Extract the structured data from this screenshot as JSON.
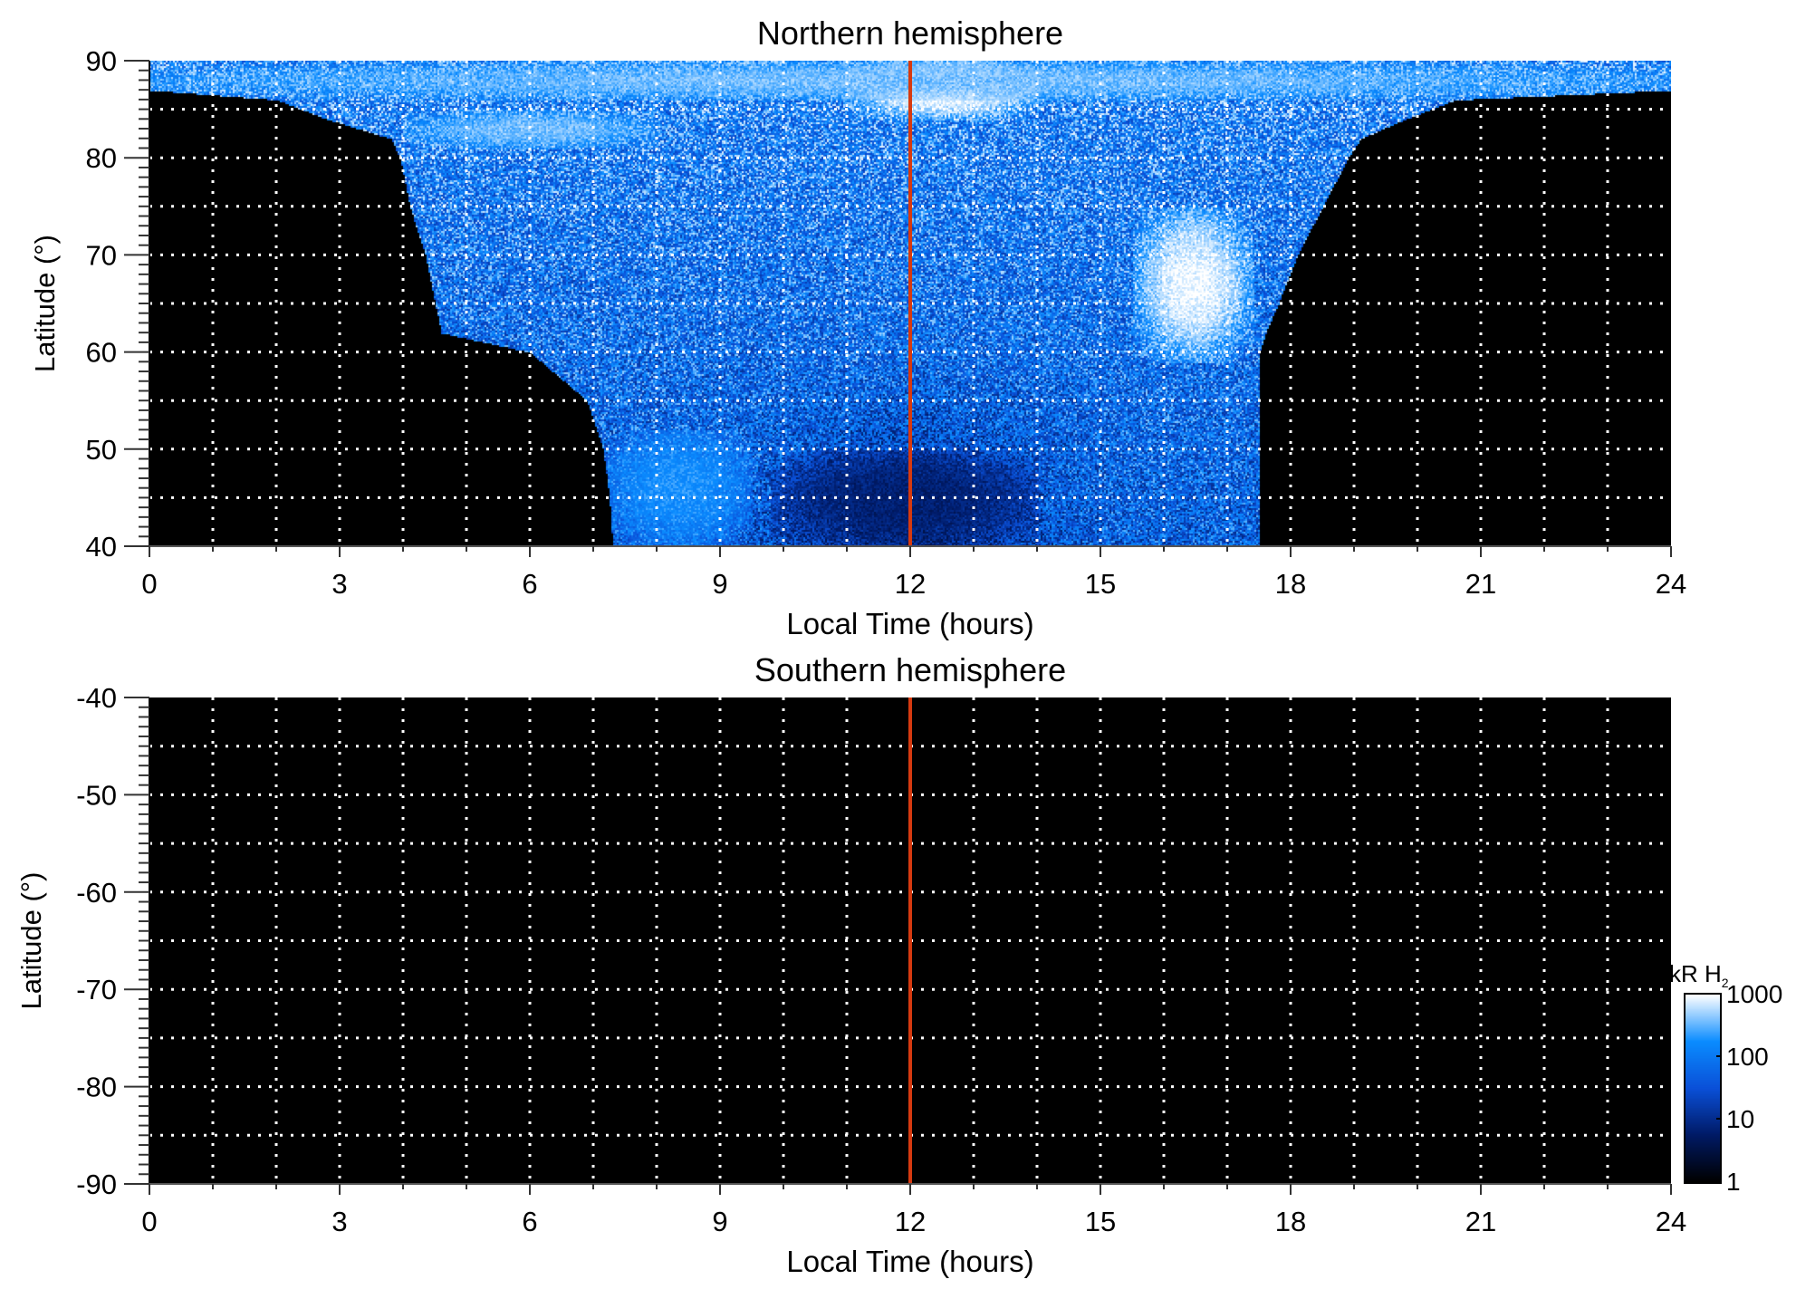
{
  "chart_data": [
    {
      "type": "heatmap",
      "title": "Northern hemisphere",
      "xlabel": "Local Time (hours)",
      "ylabel": "Latitude (°)",
      "xlim": [
        0,
        24
      ],
      "ylim": [
        40,
        90
      ],
      "xticks": [
        "0",
        "3",
        "6",
        "9",
        "12",
        "15",
        "18",
        "21",
        "24"
      ],
      "yticks": [
        "40",
        "50",
        "60",
        "70",
        "80",
        "90"
      ],
      "grid": true,
      "reference_line": {
        "x": 12,
        "color": "#d63a10"
      },
      "emission_boundaries": {
        "latitude": [
          40,
          45,
          50,
          55,
          60,
          62,
          65,
          70,
          75,
          80,
          82,
          84,
          86,
          87,
          90
        ],
        "dawn_lt": [
          7.3,
          7.25,
          7.15,
          6.9,
          6.0,
          4.6,
          4.5,
          4.35,
          4.1,
          3.95,
          3.8,
          2.8,
          2.0,
          0,
          0
        ],
        "dusk_lt": [
          17.5,
          17.5,
          17.5,
          17.5,
          17.5,
          17.6,
          17.8,
          18.1,
          18.5,
          18.9,
          19.1,
          19.8,
          20.6,
          24,
          24
        ]
      },
      "features": [
        {
          "name": "dusk bright arc",
          "lt_range": [
            15.5,
            17.4
          ],
          "lat_range": [
            59,
            75
          ],
          "log10_kR": 3.0
        },
        {
          "name": "noon polar cusp",
          "lt_range": [
            11,
            14
          ],
          "lat_range": [
            84,
            90
          ],
          "log10_kR": 3.0
        },
        {
          "name": "high-latitude band",
          "lt_range": [
            0,
            24
          ],
          "lat_range": [
            86,
            90
          ],
          "log10_kR": 2.6
        },
        {
          "name": "dawn arc",
          "lt_range": [
            4,
            8
          ],
          "lat_range": [
            81,
            85
          ],
          "log10_kR": 2.6
        },
        {
          "name": "dawn low-latitude",
          "lt_range": [
            7.2,
            9.5
          ],
          "lat_range": [
            40,
            52
          ],
          "log10_kR": 2.3
        },
        {
          "name": "noon low-latitude",
          "lt_range": [
            9.8,
            14
          ],
          "lat_range": [
            40,
            50
          ],
          "log10_kR": 0.8
        }
      ]
    },
    {
      "type": "heatmap",
      "title": "Southern hemisphere",
      "xlabel": "Local Time (hours)",
      "ylabel": "Latitude (°)",
      "xlim": [
        0,
        24
      ],
      "ylim": [
        -90,
        -40
      ],
      "xticks": [
        "0",
        "3",
        "6",
        "9",
        "12",
        "15",
        "18",
        "21",
        "24"
      ],
      "yticks": [
        "-40",
        "-50",
        "-60",
        "-70",
        "-80",
        "-90"
      ],
      "grid": true,
      "reference_line": {
        "x": 12,
        "color": "#d63a10"
      },
      "emission_boundaries": null,
      "features": []
    }
  ],
  "colorbar": {
    "label": "kR H",
    "label_subscript": "2",
    "scale": "log",
    "range": [
      1,
      1000
    ],
    "ticks": [
      "1000",
      "100",
      "10",
      "1"
    ],
    "colors": [
      "#000000",
      "#001a66",
      "#0a50d8",
      "#0a8cff",
      "#ffffff"
    ]
  }
}
